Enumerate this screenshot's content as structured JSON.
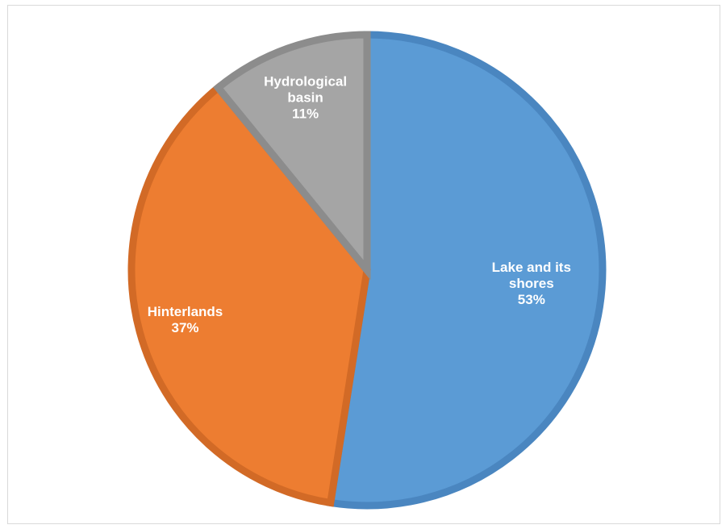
{
  "chart_data": {
    "type": "pie",
    "title": "",
    "slices": [
      {
        "label_lines": [
          "Lake and its",
          "shores"
        ],
        "value": 53,
        "value_label": "53%",
        "color": "#5b9bd5",
        "edge": "#4a86c0"
      },
      {
        "label_lines": [
          "Hinterlands"
        ],
        "value": 37,
        "value_label": "37%",
        "color": "#ed7d31",
        "edge": "#d26a26"
      },
      {
        "label_lines": [
          "Hydrological",
          "basin"
        ],
        "value": 11,
        "value_label": "11%",
        "color": "#a5a5a5",
        "edge": "#8c8c8c"
      }
    ],
    "start_angle_deg": 0,
    "direction": "clockwise",
    "legend": "none",
    "data_labels": "inside"
  }
}
